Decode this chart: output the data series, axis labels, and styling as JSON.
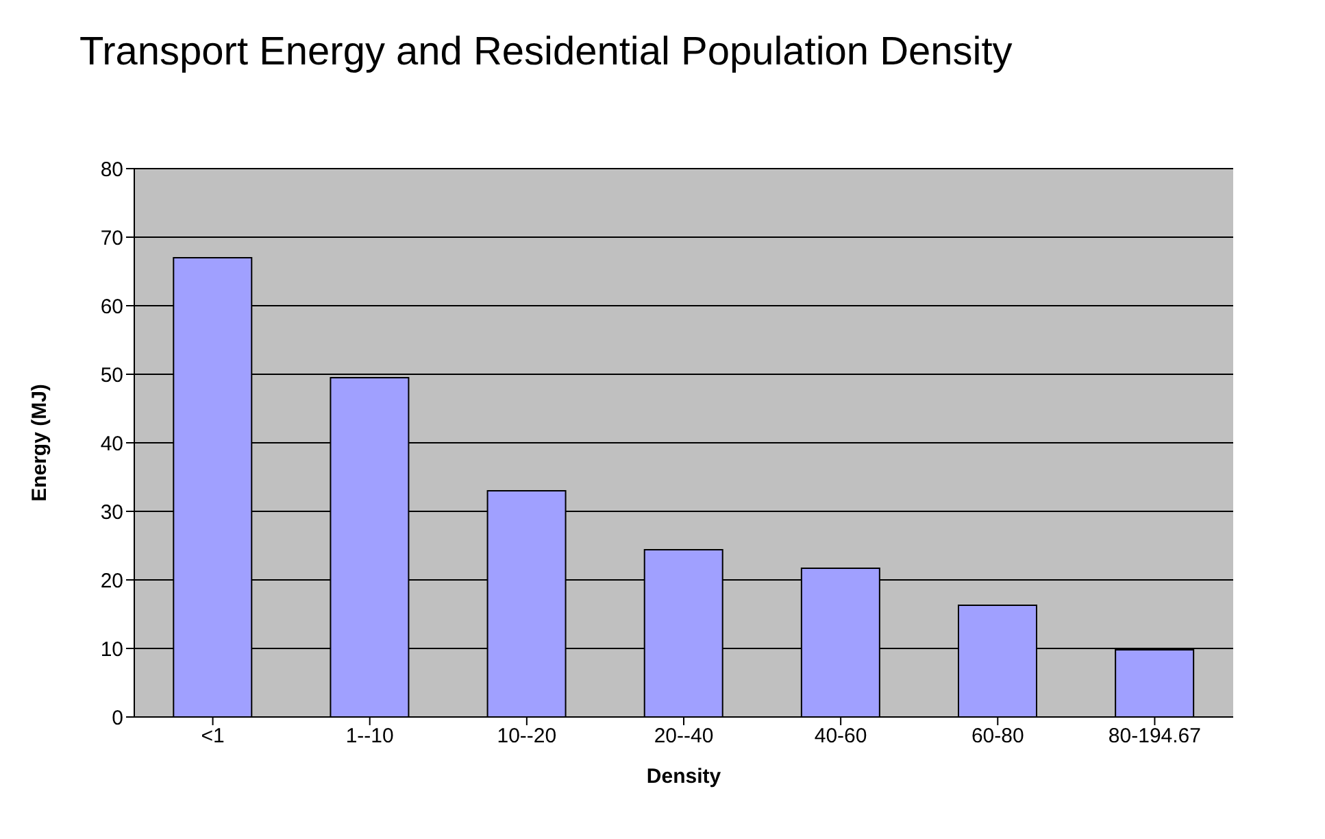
{
  "chart_data": {
    "type": "bar",
    "title": "Transport  Energy and Residential Population Density",
    "xlabel": "Density",
    "ylabel": "Energy (MJ)",
    "categories": [
      "<1",
      "1--10",
      "10--20",
      "20--40",
      "40-60",
      "60-80",
      "80-194.67"
    ],
    "values": [
      67,
      49.5,
      33,
      24.4,
      21.7,
      16.3,
      9.8
    ],
    "color": "#a0a0ff",
    "ylim": [
      0,
      80
    ],
    "yticks": [
      0,
      10,
      20,
      30,
      40,
      50,
      60,
      70,
      80
    ],
    "grid": "y"
  }
}
